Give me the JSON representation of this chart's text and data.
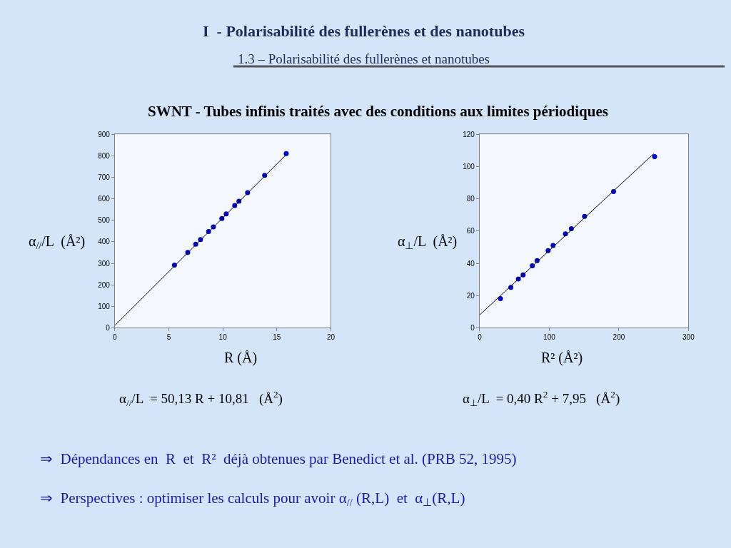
{
  "chart_data": [
    {
      "type": "scatter",
      "title": "I  - Polarisabilité des fullerènes et des nanotubes",
      "subtitle": "1.3 – Polarisabilité des fullerènes et nanotubes",
      "xlabel": "R (Å)",
      "ylabel": "α$_{//}$/L  (Å²)",
      "annotations": [
        "SWNT - Tubes infinis traités avec des conditions aux limites périodiques",
        "α$_{//}$/L  = 50,13 R + 10,81   (Å$^{2}$)",
        "⇒  Dépendances en  R  et  R²  déjà obtenues par Benedict et al. (PRB 52, 1995)",
        "⇒  Perspectives : optimiser les calculs pour avoir α$_{//}$ (R,L)  et  α$_{⊥}$(R,L)"
      ],
      "xlim": [
        0,
        20
      ],
      "xticks": [
        0,
        5,
        10,
        15,
        20
      ],
      "ylim": [
        0,
        900
      ],
      "yticks": [
        0,
        100,
        200,
        300,
        400,
        500,
        600,
        700,
        800,
        900
      ],
      "grid": false,
      "series": [
        {
          "marker": "circle",
          "color": "#0000cc",
          "x": [
            5.52,
            6.75,
            7.49,
            7.93,
            8.68,
            9.12,
            9.91,
            10.31,
            11.1,
            11.49,
            12.29,
            13.87,
            15.87
          ],
          "values": [
            292,
            351,
            389,
            411,
            448,
            470,
            509,
            530,
            569,
            589,
            629,
            710,
            811
          ]
        },
        {
          "type": "line",
          "marker": "none",
          "line_style": "solid",
          "color": "#000000",
          "x": [
            0,
            15.87
          ],
          "values": [
            11,
            806
          ]
        }
      ]
    },
    {
      "type": "scatter",
      "xlabel": "R² (Å²)",
      "ylabel": "α$_{⊥}$/L  (Å²)",
      "annotations": [
        "α$_{⊥}$/L  = 0,40 R$^{2}$ + 7,95   (Å$^{2}$)"
      ],
      "xlim": [
        0,
        300
      ],
      "xticks": [
        0,
        100,
        200,
        300
      ],
      "ylim": [
        0,
        120
      ],
      "yticks": [
        0,
        20,
        40,
        60,
        80,
        100,
        120
      ],
      "grid": false,
      "series": [
        {
          "marker": "circle",
          "color": "#0000cc",
          "x": [
            29.9,
            44.8,
            55.6,
            62.4,
            75.7,
            82.5,
            98.4,
            105.5,
            123.2,
            131.7,
            150.7,
            192.4,
            251.4
          ],
          "values": [
            18.1,
            25.1,
            30.3,
            32.8,
            38.5,
            41.7,
            47.9,
            51.1,
            58.3,
            61.5,
            69.2,
            84.6,
            106.3
          ]
        },
        {
          "type": "line",
          "marker": "none",
          "line_style": "solid",
          "color": "#000000",
          "x": [
            0,
            250
          ],
          "values": [
            8,
            108
          ]
        }
      ]
    }
  ]
}
